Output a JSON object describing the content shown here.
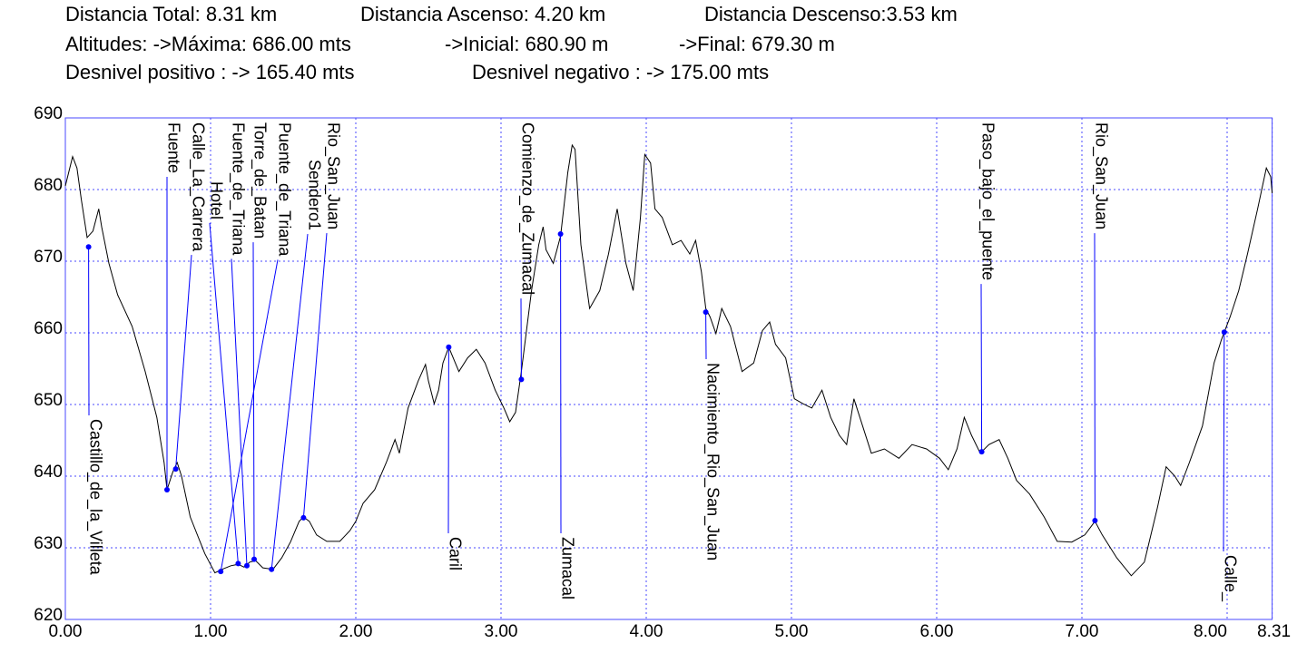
{
  "header": {
    "lines": [
      [
        "Distancia Total: 8.31 km",
        "Distancia Ascenso: 4.20 km",
        "Distancia Descenso:3.53 km"
      ],
      [
        "Altitudes: ->Máxima: 686.00 mts",
        "->Inicial: 680.90 m",
        "->Final: 679.30 m"
      ],
      [
        "Desnivel positivo : -> 165.40 mts",
        "Desnivel negativo : -> 175.00 mts"
      ]
    ]
  },
  "chart_data": {
    "type": "line",
    "color": "#000000",
    "marker_color": "#0000ff",
    "frame_color": "#4a4aff",
    "grid": true,
    "xlim": [
      0,
      8.31
    ],
    "ylim": [
      620,
      690
    ],
    "xticks": [
      {
        "value": 0,
        "label": "0.00"
      },
      {
        "value": 1,
        "label": "1.00"
      },
      {
        "value": 2,
        "label": "2.00"
      },
      {
        "value": 3,
        "label": "3.00"
      },
      {
        "value": 4,
        "label": "4.00"
      },
      {
        "value": 5,
        "label": "5.00"
      },
      {
        "value": 6,
        "label": "6.00"
      },
      {
        "value": 7,
        "label": "7.00"
      },
      {
        "value": 8,
        "label": "8.00"
      },
      {
        "value": 8.31,
        "label": "8.31"
      }
    ],
    "yticks": [
      620,
      630,
      640,
      650,
      660,
      670,
      680,
      690
    ],
    "x": [
      0.0,
      0.05,
      0.08,
      0.11,
      0.15,
      0.19,
      0.23,
      0.25,
      0.3,
      0.36,
      0.46,
      0.55,
      0.63,
      0.68,
      0.7,
      0.74,
      0.77,
      0.8,
      0.86,
      0.96,
      1.03,
      1.08,
      1.14,
      1.19,
      1.23,
      1.27,
      1.31,
      1.36,
      1.43,
      1.49,
      1.55,
      1.61,
      1.64,
      1.68,
      1.73,
      1.8,
      1.89,
      1.96,
      2.0,
      2.05,
      2.13,
      2.21,
      2.27,
      2.3,
      2.36,
      2.43,
      2.48,
      2.5,
      2.54,
      2.57,
      2.6,
      2.64,
      2.71,
      2.77,
      2.83,
      2.89,
      2.96,
      3.02,
      3.06,
      3.1,
      3.14,
      3.21,
      3.26,
      3.29,
      3.31,
      3.36,
      3.41,
      3.46,
      3.49,
      3.51,
      3.55,
      3.61,
      3.68,
      3.74,
      3.8,
      3.86,
      3.91,
      3.96,
      3.99,
      4.03,
      4.06,
      4.11,
      4.18,
      4.24,
      4.3,
      4.34,
      4.38,
      4.41,
      4.44,
      4.48,
      4.52,
      4.58,
      4.66,
      4.74,
      4.8,
      4.85,
      4.89,
      4.96,
      5.02,
      5.08,
      5.14,
      5.21,
      5.27,
      5.33,
      5.38,
      5.43,
      5.49,
      5.55,
      5.64,
      5.74,
      5.83,
      5.93,
      6.02,
      6.08,
      6.14,
      6.19,
      6.24,
      6.3,
      6.36,
      6.43,
      6.49,
      6.55,
      6.64,
      6.74,
      6.83,
      6.93,
      7.02,
      7.09,
      7.14,
      7.24,
      7.34,
      7.43,
      7.52,
      7.58,
      7.64,
      7.68,
      7.74,
      7.83,
      7.91,
      7.96,
      8.02,
      8.08,
      8.14,
      8.21,
      8.27,
      8.3,
      8.31
    ],
    "values": [
      680.5,
      684.6,
      683.0,
      678.6,
      673.3,
      674.2,
      677.3,
      674.8,
      669.7,
      665.3,
      660.9,
      654.6,
      648.2,
      641.9,
      638.1,
      640.6,
      641.9,
      640.0,
      634.3,
      629.2,
      626.5,
      627.0,
      627.5,
      627.7,
      627.3,
      628.0,
      628.2,
      627.2,
      627.0,
      628.6,
      630.8,
      633.7,
      634.3,
      633.7,
      631.8,
      630.9,
      630.9,
      632.4,
      633.7,
      636.2,
      638.1,
      641.9,
      645.1,
      643.2,
      649.5,
      653.3,
      655.6,
      653.3,
      650.1,
      652.0,
      655.8,
      658.0,
      654.6,
      656.5,
      657.7,
      655.8,
      652.0,
      649.5,
      647.6,
      648.9,
      654.6,
      665.9,
      672.3,
      674.8,
      671.6,
      669.7,
      673.5,
      682.4,
      686.2,
      685.6,
      672.3,
      663.4,
      665.9,
      671.0,
      677.3,
      669.7,
      665.9,
      676.1,
      684.9,
      683.7,
      677.3,
      676.1,
      672.3,
      672.9,
      671.0,
      672.9,
      668.5,
      663.4,
      662.2,
      659.9,
      663.4,
      660.9,
      654.6,
      655.8,
      660.3,
      661.5,
      658.4,
      656.5,
      650.8,
      650.1,
      649.5,
      652.0,
      648.2,
      645.7,
      644.4,
      650.8,
      647.0,
      643.2,
      643.8,
      642.5,
      644.4,
      643.8,
      642.5,
      640.9,
      643.8,
      648.2,
      645.7,
      643.2,
      644.4,
      645.1,
      642.5,
      639.4,
      637.5,
      634.3,
      630.9,
      630.8,
      631.8,
      633.7,
      631.8,
      628.6,
      626.1,
      628.0,
      635.6,
      641.3,
      640.0,
      638.7,
      641.9,
      647.0,
      655.8,
      659.0,
      662.2,
      665.9,
      671.0,
      677.3,
      683.0,
      681.8,
      679.5
    ],
    "waypoints": [
      {
        "label": "Castillo_de_la_Villeta",
        "x": 0.16,
        "value": 672.0,
        "side": "bottom"
      },
      {
        "label": "Fuente",
        "x": 0.7,
        "value": 638.1,
        "side": "top"
      },
      {
        "label": "Calle_La_Carrera",
        "x": 0.76,
        "value": 641.0,
        "side": "top"
      },
      {
        "label": "Hotel",
        "x": 1.19,
        "value": 627.8,
        "side": "top"
      },
      {
        "label": "Fuente_de_Triana",
        "x": 1.25,
        "value": 627.5,
        "side": "top"
      },
      {
        "label": "Torre_de_Batan",
        "x": 1.3,
        "value": 628.4,
        "side": "top"
      },
      {
        "label": "Puente_de_Triana",
        "x": 1.07,
        "value": 626.7,
        "side": "top"
      },
      {
        "label": "Sendero1",
        "x": 1.42,
        "value": 627.0,
        "side": "top"
      },
      {
        "label": "Rio_San_Juan",
        "x": 1.64,
        "value": 634.2,
        "side": "top"
      },
      {
        "label": "Caril",
        "x": 2.64,
        "value": 658.0,
        "side": "bottom"
      },
      {
        "label": "Comienzo_de_Zumacal",
        "x": 3.14,
        "value": 653.5,
        "side": "top"
      },
      {
        "label": "Zumacal",
        "x": 3.41,
        "value": 673.8,
        "side": "bottom"
      },
      {
        "label": "Nacimiento_Rio_San_Juan",
        "x": 4.41,
        "value": 662.9,
        "side": "bottom"
      },
      {
        "label": "Paso_bajo_el_puente",
        "x": 6.31,
        "value": 643.4,
        "side": "top"
      },
      {
        "label": "Rio_San_Juan",
        "x": 7.09,
        "value": 633.8,
        "side": "top"
      },
      {
        "label": "Calle_",
        "x": 7.98,
        "value": 660.1,
        "side": "bottom"
      }
    ]
  }
}
